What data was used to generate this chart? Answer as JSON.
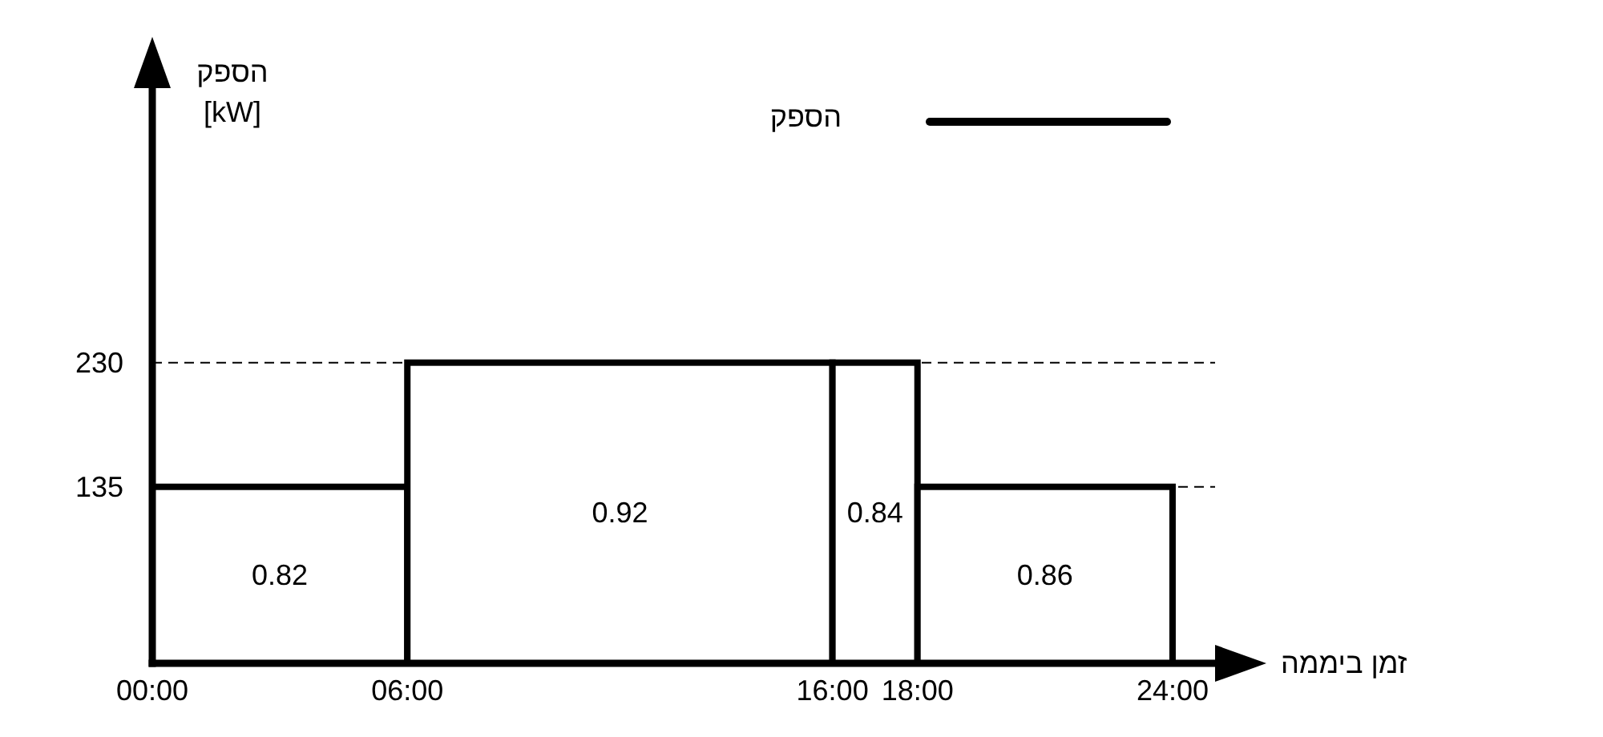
{
  "chart_data": {
    "type": "histogram",
    "xlabel": "זמן ביממה",
    "ylabel": "הספק\n[kW]",
    "bins": [
      0,
      6,
      16,
      18,
      24
    ],
    "series": [
      {
        "name": "הספק",
        "color": "#000000",
        "values": [
          135,
          230,
          230,
          135
        ]
      }
    ],
    "annotations": [
      "0.82",
      "0.92",
      "0.84",
      "0.86"
    ],
    "xlim": [
      0,
      25
    ],
    "xticks": [
      {
        "value": 0,
        "label": "00:00"
      },
      {
        "value": 6,
        "label": "06:00"
      },
      {
        "value": 16,
        "label": "16:00"
      },
      {
        "value": 18,
        "label": "18:00"
      },
      {
        "value": 24,
        "label": "24:00"
      }
    ],
    "ylim": [
      0,
      440
    ],
    "yticks": [
      135,
      230
    ],
    "ref_lines": [
      {
        "axis": "y",
        "value": 230,
        "color": "#000000",
        "line_style": "dashed"
      },
      {
        "axis": "y",
        "value": 135,
        "color": "#000000",
        "line_style": "dashed"
      }
    ],
    "legend": "top right"
  }
}
